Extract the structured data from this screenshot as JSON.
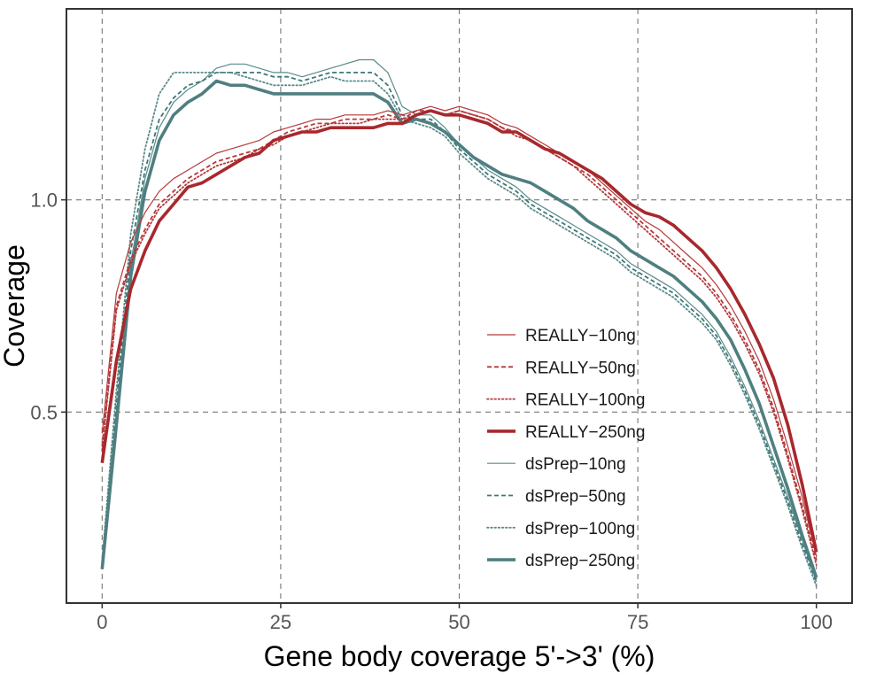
{
  "chart_data": {
    "type": "line",
    "xlabel": "Gene body coverage 5'->3' (%)",
    "ylabel": "Coverage",
    "xlim": [
      -5,
      105
    ],
    "ylim": [
      0.05,
      1.45
    ],
    "x_ticks": [
      0,
      25,
      50,
      75,
      100
    ],
    "x_tick_labels": [
      "0",
      "25",
      "50",
      "75",
      "100"
    ],
    "y_ticks": [
      0.5,
      1.0
    ],
    "y_tick_labels": [
      "0.5",
      "1.0"
    ],
    "grid": true,
    "legend_position": "bottom-right",
    "x": [
      0,
      2,
      4,
      6,
      8,
      10,
      12,
      14,
      16,
      18,
      20,
      22,
      24,
      26,
      28,
      30,
      32,
      34,
      36,
      38,
      40,
      42,
      44,
      46,
      48,
      50,
      52,
      54,
      56,
      58,
      60,
      62,
      64,
      66,
      68,
      70,
      72,
      74,
      76,
      78,
      80,
      82,
      84,
      86,
      88,
      90,
      92,
      94,
      96,
      98,
      100
    ],
    "series": [
      {
        "name": "REALLY−10ng",
        "color": "#b5393b",
        "style": "solid-thin",
        "values": [
          0.45,
          0.78,
          0.9,
          0.97,
          1.02,
          1.05,
          1.07,
          1.09,
          1.11,
          1.12,
          1.13,
          1.14,
          1.16,
          1.17,
          1.18,
          1.19,
          1.19,
          1.2,
          1.2,
          1.2,
          1.21,
          1.2,
          1.21,
          1.22,
          1.21,
          1.22,
          1.21,
          1.2,
          1.18,
          1.17,
          1.15,
          1.13,
          1.11,
          1.09,
          1.07,
          1.04,
          1.01,
          0.98,
          0.95,
          0.93,
          0.9,
          0.87,
          0.84,
          0.8,
          0.75,
          0.69,
          0.62,
          0.53,
          0.42,
          0.3,
          0.16
        ]
      },
      {
        "name": "REALLY−50ng",
        "color": "#b5393b",
        "style": "dashed",
        "values": [
          0.42,
          0.75,
          0.86,
          0.93,
          0.99,
          1.02,
          1.05,
          1.07,
          1.09,
          1.1,
          1.11,
          1.12,
          1.14,
          1.16,
          1.17,
          1.18,
          1.18,
          1.19,
          1.19,
          1.19,
          1.2,
          1.19,
          1.21,
          1.21,
          1.2,
          1.21,
          1.2,
          1.19,
          1.17,
          1.16,
          1.14,
          1.12,
          1.1,
          1.08,
          1.06,
          1.03,
          1.0,
          0.97,
          0.94,
          0.91,
          0.88,
          0.85,
          0.82,
          0.78,
          0.73,
          0.67,
          0.6,
          0.51,
          0.4,
          0.28,
          0.15
        ]
      },
      {
        "name": "REALLY−100ng",
        "color": "#b5393b",
        "style": "dotted",
        "values": [
          0.41,
          0.74,
          0.85,
          0.92,
          0.98,
          1.01,
          1.04,
          1.06,
          1.08,
          1.09,
          1.1,
          1.12,
          1.13,
          1.15,
          1.16,
          1.17,
          1.18,
          1.18,
          1.18,
          1.19,
          1.19,
          1.19,
          1.2,
          1.21,
          1.2,
          1.21,
          1.2,
          1.19,
          1.17,
          1.15,
          1.14,
          1.12,
          1.1,
          1.08,
          1.05,
          1.02,
          0.99,
          0.96,
          0.93,
          0.9,
          0.87,
          0.84,
          0.81,
          0.77,
          0.72,
          0.66,
          0.59,
          0.5,
          0.39,
          0.27,
          0.14
        ]
      },
      {
        "name": "REALLY−250ng",
        "color": "#a8282d",
        "style": "solid-thick",
        "values": [
          0.38,
          0.62,
          0.79,
          0.88,
          0.95,
          0.99,
          1.03,
          1.04,
          1.06,
          1.08,
          1.1,
          1.11,
          1.14,
          1.15,
          1.16,
          1.16,
          1.17,
          1.17,
          1.17,
          1.17,
          1.18,
          1.18,
          1.2,
          1.21,
          1.2,
          1.2,
          1.19,
          1.18,
          1.16,
          1.16,
          1.14,
          1.12,
          1.11,
          1.09,
          1.07,
          1.05,
          1.02,
          0.99,
          0.97,
          0.96,
          0.94,
          0.91,
          0.88,
          0.84,
          0.79,
          0.73,
          0.66,
          0.58,
          0.47,
          0.33,
          0.17
        ]
      },
      {
        "name": "dsPrep−10ng",
        "color": "#5a8b8a",
        "style": "solid-thin",
        "values": [
          0.13,
          0.5,
          0.85,
          1.05,
          1.17,
          1.23,
          1.26,
          1.28,
          1.31,
          1.32,
          1.32,
          1.31,
          1.3,
          1.3,
          1.29,
          1.3,
          1.31,
          1.32,
          1.33,
          1.33,
          1.3,
          1.22,
          1.2,
          1.2,
          1.17,
          1.13,
          1.1,
          1.07,
          1.05,
          1.03,
          1.0,
          0.98,
          0.96,
          0.94,
          0.92,
          0.9,
          0.88,
          0.85,
          0.83,
          0.81,
          0.79,
          0.76,
          0.73,
          0.69,
          0.63,
          0.56,
          0.48,
          0.39,
          0.3,
          0.2,
          0.1
        ]
      },
      {
        "name": "dsPrep−50ng",
        "color": "#3f7777",
        "style": "dashed",
        "values": [
          0.14,
          0.52,
          0.88,
          1.07,
          1.19,
          1.24,
          1.27,
          1.28,
          1.3,
          1.3,
          1.3,
          1.3,
          1.29,
          1.29,
          1.28,
          1.29,
          1.3,
          1.3,
          1.3,
          1.3,
          1.27,
          1.2,
          1.19,
          1.19,
          1.16,
          1.12,
          1.09,
          1.06,
          1.04,
          1.02,
          0.99,
          0.97,
          0.95,
          0.93,
          0.91,
          0.89,
          0.87,
          0.84,
          0.82,
          0.8,
          0.78,
          0.75,
          0.72,
          0.68,
          0.62,
          0.55,
          0.47,
          0.38,
          0.29,
          0.19,
          0.1
        ]
      },
      {
        "name": "dsPrep−100ng",
        "color": "#5a8b8a",
        "style": "dotted",
        "values": [
          0.15,
          0.55,
          0.92,
          1.12,
          1.25,
          1.3,
          1.3,
          1.3,
          1.3,
          1.3,
          1.29,
          1.28,
          1.27,
          1.27,
          1.27,
          1.28,
          1.29,
          1.28,
          1.28,
          1.28,
          1.25,
          1.19,
          1.18,
          1.17,
          1.15,
          1.11,
          1.08,
          1.05,
          1.03,
          1.01,
          0.98,
          0.96,
          0.94,
          0.92,
          0.9,
          0.88,
          0.86,
          0.83,
          0.81,
          0.79,
          0.77,
          0.74,
          0.71,
          0.67,
          0.61,
          0.54,
          0.46,
          0.37,
          0.28,
          0.18,
          0.09
        ]
      },
      {
        "name": "dsPrep−250ng",
        "color": "#4f7f80",
        "style": "solid-thick",
        "values": [
          0.13,
          0.47,
          0.82,
          1.02,
          1.14,
          1.2,
          1.23,
          1.25,
          1.28,
          1.27,
          1.27,
          1.26,
          1.25,
          1.25,
          1.25,
          1.25,
          1.25,
          1.25,
          1.25,
          1.25,
          1.23,
          1.18,
          1.19,
          1.18,
          1.16,
          1.13,
          1.1,
          1.08,
          1.06,
          1.05,
          1.04,
          1.02,
          1.0,
          0.98,
          0.95,
          0.93,
          0.91,
          0.88,
          0.86,
          0.84,
          0.82,
          0.79,
          0.76,
          0.72,
          0.67,
          0.6,
          0.52,
          0.42,
          0.32,
          0.21,
          0.11
        ]
      }
    ]
  }
}
